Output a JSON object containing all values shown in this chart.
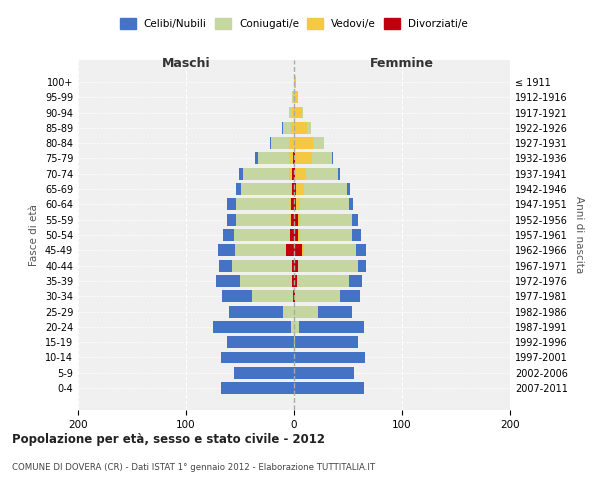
{
  "age_groups": [
    "0-4",
    "5-9",
    "10-14",
    "15-19",
    "20-24",
    "25-29",
    "30-34",
    "35-39",
    "40-44",
    "45-49",
    "50-54",
    "55-59",
    "60-64",
    "65-69",
    "70-74",
    "75-79",
    "80-84",
    "85-89",
    "90-94",
    "95-99",
    "100+"
  ],
  "birth_years": [
    "2007-2011",
    "2002-2006",
    "1997-2001",
    "1992-1996",
    "1987-1991",
    "1982-1986",
    "1977-1981",
    "1972-1976",
    "1967-1971",
    "1962-1966",
    "1957-1961",
    "1952-1956",
    "1947-1951",
    "1942-1946",
    "1937-1941",
    "1932-1936",
    "1927-1931",
    "1922-1926",
    "1917-1921",
    "1912-1916",
    "≤ 1911"
  ],
  "males": {
    "celibi": [
      68,
      56,
      68,
      62,
      72,
      50,
      28,
      22,
      12,
      15,
      10,
      8,
      8,
      5,
      4,
      3,
      1,
      1,
      0,
      0,
      0
    ],
    "coniugati": [
      0,
      0,
      0,
      0,
      3,
      10,
      38,
      48,
      55,
      48,
      52,
      50,
      50,
      46,
      42,
      28,
      16,
      7,
      3,
      1,
      0
    ],
    "vedovi": [
      0,
      0,
      0,
      0,
      0,
      0,
      0,
      0,
      0,
      0,
      0,
      1,
      1,
      1,
      3,
      4,
      5,
      3,
      2,
      1,
      0
    ],
    "divorziati": [
      0,
      0,
      0,
      0,
      0,
      0,
      1,
      2,
      2,
      7,
      4,
      3,
      3,
      2,
      2,
      1,
      0,
      0,
      0,
      0,
      0
    ]
  },
  "females": {
    "nubili": [
      65,
      56,
      66,
      58,
      60,
      32,
      18,
      12,
      8,
      10,
      8,
      5,
      4,
      3,
      2,
      1,
      0,
      0,
      0,
      0,
      0
    ],
    "coniugate": [
      0,
      0,
      0,
      1,
      5,
      22,
      42,
      48,
      55,
      48,
      48,
      48,
      45,
      40,
      30,
      18,
      10,
      4,
      1,
      0,
      0
    ],
    "vedove": [
      0,
      0,
      0,
      0,
      0,
      0,
      0,
      0,
      0,
      2,
      2,
      2,
      4,
      7,
      10,
      16,
      18,
      12,
      7,
      4,
      2
    ],
    "divorziate": [
      0,
      0,
      0,
      0,
      0,
      0,
      1,
      3,
      4,
      7,
      4,
      4,
      2,
      2,
      1,
      1,
      0,
      0,
      0,
      0,
      0
    ]
  },
  "colors": {
    "celibi": "#4472C4",
    "coniugati": "#C5D6A0",
    "vedovi": "#F5C842",
    "divorziati": "#C0000C"
  },
  "xlim": 200,
  "title": "Popolazione per età, sesso e stato civile - 2012",
  "subtitle": "COMUNE DI DOVERA (CR) - Dati ISTAT 1° gennaio 2012 - Elaborazione TUTTITALIA.IT",
  "ylabel": "Fasce di età",
  "ylabel_right": "Anni di nascita",
  "xlabel_left": "Maschi",
  "xlabel_right": "Femmine",
  "bg_color": "#f0f0f0"
}
